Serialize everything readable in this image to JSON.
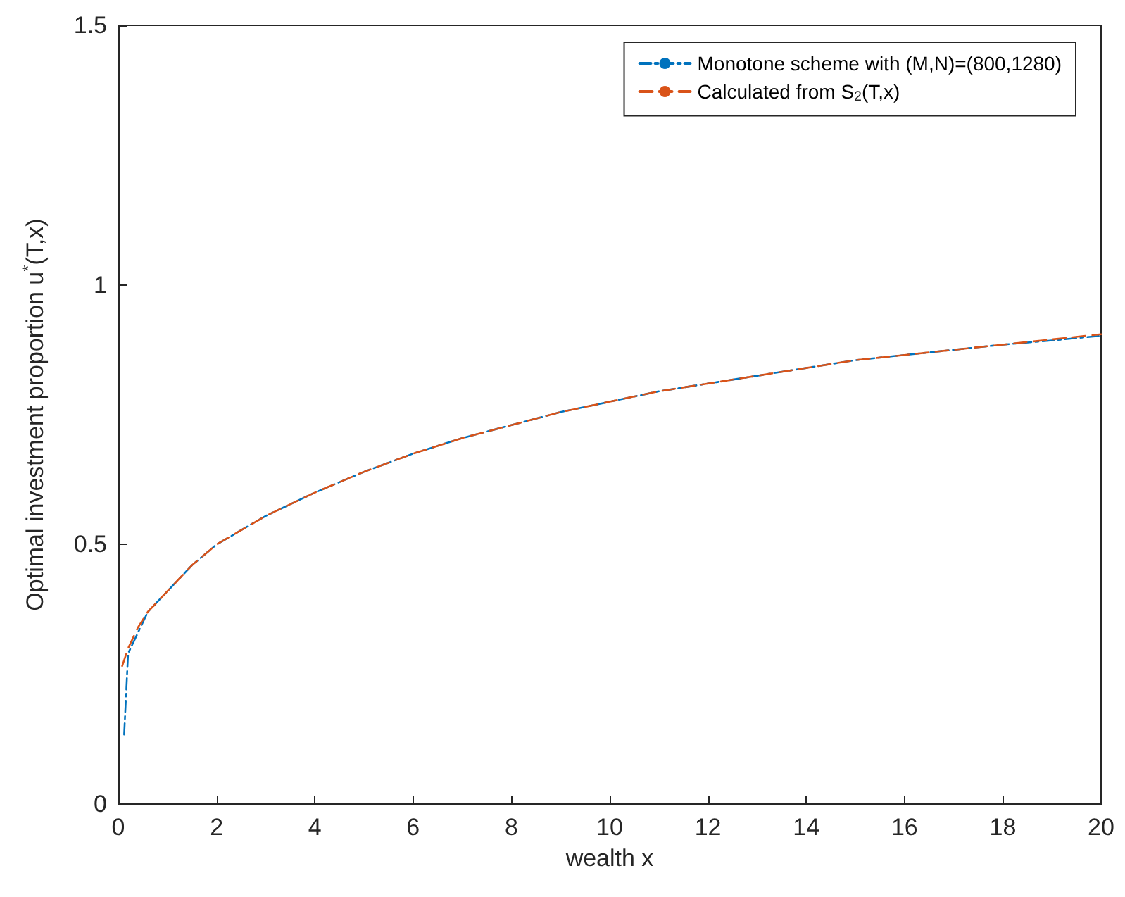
{
  "chart_data": {
    "type": "line",
    "xlabel": "wealth x",
    "ylabel": "Optimal investment proportion u$^{*}$(T,x)",
    "xlim": [
      0,
      20
    ],
    "ylim": [
      0,
      1.5
    ],
    "xticks": [
      0,
      2,
      4,
      6,
      8,
      10,
      12,
      14,
      16,
      18,
      20
    ],
    "yticks": [
      0,
      0.5,
      1,
      1.5
    ],
    "grid": false,
    "legend": "top right",
    "marker": "none",
    "series": [
      {
        "name": "Monotone scheme with (M,N)=(800,1280)",
        "color": "#0072bd",
        "line_style": "dashdot",
        "x": [
          0.12,
          0.2,
          0.4,
          0.6,
          1,
          1.5,
          2,
          3,
          4,
          5,
          6,
          7,
          8,
          9,
          10,
          11,
          12,
          13,
          14,
          15,
          16,
          17,
          18,
          19,
          20
        ],
        "values": [
          0.134,
          0.29,
          0.33,
          0.37,
          0.41,
          0.46,
          0.5,
          0.555,
          0.6,
          0.64,
          0.675,
          0.705,
          0.73,
          0.755,
          0.775,
          0.795,
          0.81,
          0.825,
          0.84,
          0.855,
          0.865,
          0.875,
          0.885,
          0.893,
          0.902
        ]
      },
      {
        "name": "Calculated from S$_{2}$(T,x)",
        "color": "#d95319",
        "line_style": "dashed",
        "x": [
          0.08,
          0.2,
          0.4,
          0.6,
          1,
          1.5,
          2,
          3,
          4,
          5,
          6,
          7,
          8,
          9,
          10,
          11,
          12,
          13,
          14,
          15,
          16,
          17,
          18,
          19,
          20
        ],
        "values": [
          0.266,
          0.3,
          0.34,
          0.37,
          0.41,
          0.46,
          0.5,
          0.555,
          0.6,
          0.64,
          0.675,
          0.705,
          0.73,
          0.755,
          0.775,
          0.795,
          0.81,
          0.825,
          0.84,
          0.855,
          0.865,
          0.875,
          0.885,
          0.895,
          0.905
        ]
      }
    ]
  }
}
